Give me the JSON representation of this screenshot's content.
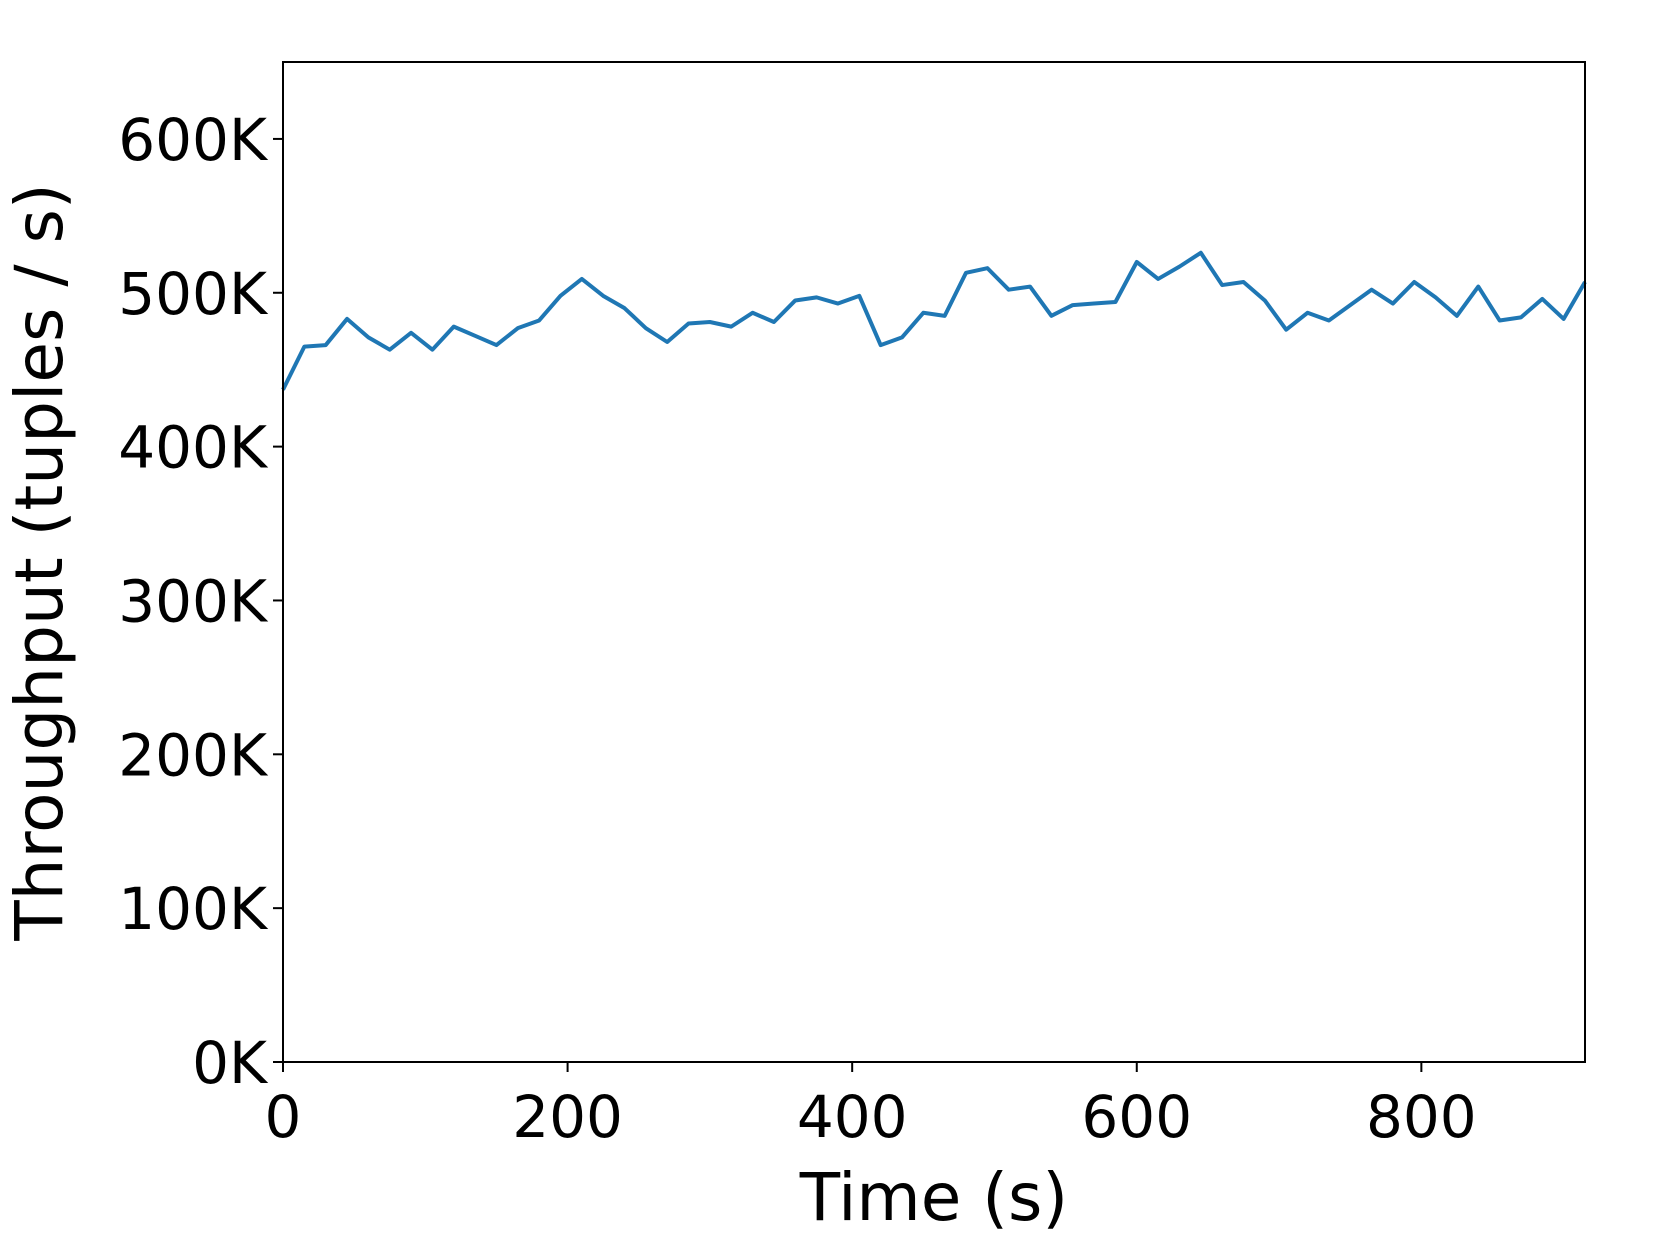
{
  "chart_data": {
    "type": "line",
    "x_label": "Time (s)",
    "y_label": "Throughput (tuples / s)",
    "x": [
      0,
      15,
      30,
      45,
      60,
      75,
      90,
      105,
      120,
      135,
      150,
      165,
      180,
      195,
      210,
      225,
      240,
      255,
      270,
      285,
      300,
      315,
      330,
      345,
      360,
      375,
      390,
      405,
      420,
      435,
      450,
      465,
      480,
      495,
      510,
      525,
      540,
      555,
      570,
      585,
      600,
      615,
      630,
      645,
      660,
      675,
      690,
      705,
      720,
      735,
      750,
      765,
      780,
      795,
      810,
      825,
      840,
      855,
      870,
      885,
      900,
      915
    ],
    "series": [
      {
        "color": "#1f77b4",
        "values": [
          437000,
          465000,
          466000,
          483000,
          471000,
          463000,
          474000,
          463000,
          478000,
          472000,
          466000,
          477000,
          482000,
          498000,
          509000,
          498000,
          490000,
          477000,
          468000,
          480000,
          481000,
          478000,
          487000,
          481000,
          495000,
          497000,
          493000,
          498000,
          466000,
          471000,
          487000,
          485000,
          513000,
          516000,
          502000,
          504000,
          485000,
          492000,
          493000,
          494000,
          520000,
          509000,
          517000,
          526000,
          505000,
          507000,
          495000,
          476000,
          487000,
          482000,
          492000,
          502000,
          493000,
          507000,
          497000,
          485000,
          504000,
          482000,
          484000,
          496000,
          483000,
          507000
        ]
      }
    ],
    "xlim": [
      0,
      915
    ],
    "ylim": [
      0,
      650000
    ],
    "xticks": [
      0,
      200,
      400,
      600,
      800
    ],
    "yticks": [
      {
        "value": 0,
        "label": "0K"
      },
      {
        "value": 100000,
        "label": "100K"
      },
      {
        "value": 200000,
        "label": "200K"
      },
      {
        "value": 300000,
        "label": "300K"
      },
      {
        "value": 400000,
        "label": "400K"
      },
      {
        "value": 500000,
        "label": "500K"
      },
      {
        "value": 600000,
        "label": "600K"
      }
    ]
  }
}
